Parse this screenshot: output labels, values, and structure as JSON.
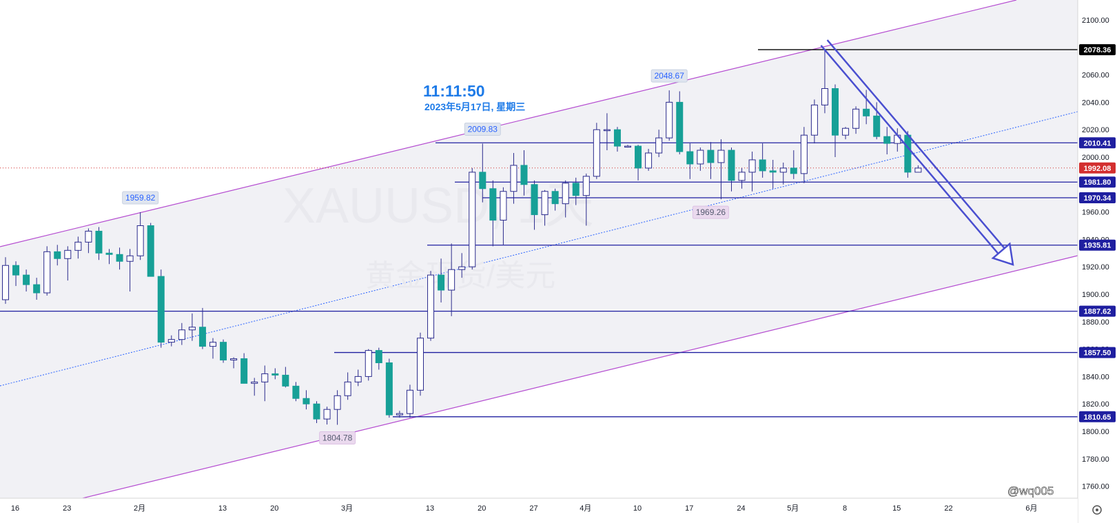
{
  "chart_data": {
    "type": "candlestick",
    "symbol_watermark": "XAUUSD, 1天",
    "description_watermark": "黄金现货/美元",
    "clock": {
      "time": "11:11:50",
      "date": "2023年5月17日, 星期三"
    },
    "credit": "@wq005",
    "y_axis": {
      "min": 1760,
      "max": 2100,
      "ticks": [
        "2100.00",
        "2080.00",
        "2060.00",
        "2040.00",
        "2020.00",
        "2000.00",
        "1980.00",
        "1960.00",
        "1940.00",
        "1920.00",
        "1900.00",
        "1880.00",
        "1860.00",
        "1840.00",
        "1820.00",
        "1800.00",
        "1780.00",
        "1760.00"
      ]
    },
    "x_axis": {
      "ticks": [
        {
          "label": "16",
          "index": 0
        },
        {
          "label": "23",
          "index": 5
        },
        {
          "label": "2月",
          "index": 12
        },
        {
          "label": "13",
          "index": 20
        },
        {
          "label": "20",
          "index": 25
        },
        {
          "label": "3月",
          "index": 32
        },
        {
          "label": "13",
          "index": 40
        },
        {
          "label": "20",
          "index": 45
        },
        {
          "label": "27",
          "index": 50
        },
        {
          "label": "4月",
          "index": 55
        },
        {
          "label": "10",
          "index": 60
        },
        {
          "label": "17",
          "index": 65
        },
        {
          "label": "24",
          "index": 70
        },
        {
          "label": "5月",
          "index": 75
        },
        {
          "label": "8",
          "index": 80
        },
        {
          "label": "15",
          "index": 85
        },
        {
          "label": "22",
          "index": 90
        },
        {
          "label": "6月",
          "index": 98
        }
      ]
    },
    "candles": [
      {
        "o": 1896,
        "h": 1927,
        "l": 1893,
        "c": 1921
      },
      {
        "o": 1921,
        "h": 1924,
        "l": 1906,
        "c": 1914
      },
      {
        "o": 1914,
        "h": 1918,
        "l": 1902,
        "c": 1907
      },
      {
        "o": 1907,
        "h": 1912,
        "l": 1896,
        "c": 1901
      },
      {
        "o": 1901,
        "h": 1935,
        "l": 1899,
        "c": 1931
      },
      {
        "o": 1931,
        "h": 1936,
        "l": 1921,
        "c": 1926
      },
      {
        "o": 1926,
        "h": 1935,
        "l": 1910,
        "c": 1932
      },
      {
        "o": 1932,
        "h": 1942,
        "l": 1926,
        "c": 1938
      },
      {
        "o": 1938,
        "h": 1948,
        "l": 1930,
        "c": 1946
      },
      {
        "o": 1946,
        "h": 1949,
        "l": 1925,
        "c": 1930
      },
      {
        "o": 1930,
        "h": 1933,
        "l": 1922,
        "c": 1929
      },
      {
        "o": 1929,
        "h": 1934,
        "l": 1918,
        "c": 1924
      },
      {
        "o": 1924,
        "h": 1933,
        "l": 1902,
        "c": 1928
      },
      {
        "o": 1928,
        "h": 1959.82,
        "l": 1925,
        "c": 1950
      },
      {
        "o": 1950,
        "h": 1952,
        "l": 1914,
        "c": 1913
      },
      {
        "o": 1913,
        "h": 1918,
        "l": 1861,
        "c": 1865
      },
      {
        "o": 1865,
        "h": 1870,
        "l": 1862,
        "c": 1867
      },
      {
        "o": 1867,
        "h": 1879,
        "l": 1863,
        "c": 1874
      },
      {
        "o": 1874,
        "h": 1886,
        "l": 1866,
        "c": 1876
      },
      {
        "o": 1876,
        "h": 1890,
        "l": 1860,
        "c": 1862
      },
      {
        "o": 1862,
        "h": 1868,
        "l": 1853,
        "c": 1865
      },
      {
        "o": 1865,
        "h": 1867,
        "l": 1850,
        "c": 1852
      },
      {
        "o": 1852,
        "h": 1854,
        "l": 1846,
        "c": 1853
      },
      {
        "o": 1853,
        "h": 1857,
        "l": 1835,
        "c": 1835
      },
      {
        "o": 1835,
        "h": 1839,
        "l": 1826,
        "c": 1836
      },
      {
        "o": 1836,
        "h": 1848,
        "l": 1822,
        "c": 1842
      },
      {
        "o": 1842,
        "h": 1846,
        "l": 1838,
        "c": 1841
      },
      {
        "o": 1841,
        "h": 1847,
        "l": 1832,
        "c": 1833
      },
      {
        "o": 1833,
        "h": 1836,
        "l": 1822,
        "c": 1824
      },
      {
        "o": 1824,
        "h": 1830,
        "l": 1816,
        "c": 1820
      },
      {
        "o": 1820,
        "h": 1822,
        "l": 1806,
        "c": 1809
      },
      {
        "o": 1809,
        "h": 1818,
        "l": 1805,
        "c": 1816
      },
      {
        "o": 1816,
        "h": 1830,
        "l": 1804.78,
        "c": 1826
      },
      {
        "o": 1826,
        "h": 1843,
        "l": 1823,
        "c": 1836
      },
      {
        "o": 1836,
        "h": 1845,
        "l": 1833,
        "c": 1840
      },
      {
        "o": 1840,
        "h": 1860,
        "l": 1837,
        "c": 1859
      },
      {
        "o": 1859,
        "h": 1861,
        "l": 1845,
        "c": 1850
      },
      {
        "o": 1850,
        "h": 1853,
        "l": 1810,
        "c": 1812
      },
      {
        "o": 1812,
        "h": 1815,
        "l": 1810,
        "c": 1813
      },
      {
        "o": 1813,
        "h": 1834,
        "l": 1810,
        "c": 1830
      },
      {
        "o": 1830,
        "h": 1872,
        "l": 1826,
        "c": 1868
      },
      {
        "o": 1868,
        "h": 1917,
        "l": 1866,
        "c": 1914
      },
      {
        "o": 1914,
        "h": 1926,
        "l": 1894,
        "c": 1903
      },
      {
        "o": 1903,
        "h": 1937,
        "l": 1884,
        "c": 1918
      },
      {
        "o": 1918,
        "h": 1930,
        "l": 1912,
        "c": 1920
      },
      {
        "o": 1920,
        "h": 1992,
        "l": 1918,
        "c": 1989
      },
      {
        "o": 1989,
        "h": 2009.83,
        "l": 1967,
        "c": 1977
      },
      {
        "o": 1977,
        "h": 1983,
        "l": 1935,
        "c": 1954
      },
      {
        "o": 1954,
        "h": 1978,
        "l": 1936,
        "c": 1975
      },
      {
        "o": 1975,
        "h": 2003,
        "l": 1966,
        "c": 1994
      },
      {
        "o": 1994,
        "h": 2005,
        "l": 1972,
        "c": 1980
      },
      {
        "o": 1980,
        "h": 1983,
        "l": 1947,
        "c": 1958
      },
      {
        "o": 1958,
        "h": 1976,
        "l": 1950,
        "c": 1975
      },
      {
        "o": 1975,
        "h": 1977,
        "l": 1961,
        "c": 1966
      },
      {
        "o": 1966,
        "h": 1983,
        "l": 1956,
        "c": 1981
      },
      {
        "o": 1981,
        "h": 1985,
        "l": 1965,
        "c": 1972
      },
      {
        "o": 1972,
        "h": 1988,
        "l": 1950,
        "c": 1986
      },
      {
        "o": 1986,
        "h": 2025,
        "l": 1984,
        "c": 2020
      },
      {
        "o": 2020,
        "h": 2032,
        "l": 2005,
        "c": 2020
      },
      {
        "o": 2020,
        "h": 2022,
        "l": 2004,
        "c": 2008
      },
      {
        "o": 2008,
        "h": 2009,
        "l": 2007,
        "c": 2008
      },
      {
        "o": 2008,
        "h": 2009,
        "l": 1983,
        "c": 1992
      },
      {
        "o": 1992,
        "h": 2006,
        "l": 1990,
        "c": 2003
      },
      {
        "o": 2003,
        "h": 2020,
        "l": 2000,
        "c": 2014
      },
      {
        "o": 2014,
        "h": 2048.67,
        "l": 2012,
        "c": 2040
      },
      {
        "o": 2040,
        "h": 2048,
        "l": 2002,
        "c": 2004
      },
      {
        "o": 2004,
        "h": 2010,
        "l": 1984,
        "c": 1995
      },
      {
        "o": 1995,
        "h": 2007,
        "l": 1990,
        "c": 2005
      },
      {
        "o": 2005,
        "h": 2011,
        "l": 1984,
        "c": 1996
      },
      {
        "o": 1996,
        "h": 2013,
        "l": 1969.26,
        "c": 2005
      },
      {
        "o": 2005,
        "h": 2007,
        "l": 1975,
        "c": 1983
      },
      {
        "o": 1983,
        "h": 1992,
        "l": 1977,
        "c": 1989
      },
      {
        "o": 1989,
        "h": 2004,
        "l": 1975,
        "c": 1998
      },
      {
        "o": 1998,
        "h": 2010,
        "l": 1985,
        "c": 1990
      },
      {
        "o": 1990,
        "h": 1998,
        "l": 1977,
        "c": 1989
      },
      {
        "o": 1989,
        "h": 1996,
        "l": 1980,
        "c": 1992
      },
      {
        "o": 1992,
        "h": 2005,
        "l": 1984,
        "c": 1988
      },
      {
        "o": 1988,
        "h": 2022,
        "l": 1981,
        "c": 2016
      },
      {
        "o": 2016,
        "h": 2042,
        "l": 2010,
        "c": 2038
      },
      {
        "o": 2038,
        "h": 2078.36,
        "l": 2032,
        "c": 2050
      },
      {
        "o": 2050,
        "h": 2053,
        "l": 2000,
        "c": 2016
      },
      {
        "o": 2016,
        "h": 2022,
        "l": 2013,
        "c": 2021
      },
      {
        "o": 2021,
        "h": 2037,
        "l": 2017,
        "c": 2035
      },
      {
        "o": 2035,
        "h": 2049,
        "l": 2024,
        "c": 2030
      },
      {
        "o": 2030,
        "h": 2040,
        "l": 2013,
        "c": 2015
      },
      {
        "o": 2015,
        "h": 2022,
        "l": 2002,
        "c": 2010
      },
      {
        "o": 2010,
        "h": 2021,
        "l": 2004,
        "c": 2016
      },
      {
        "o": 2016,
        "h": 2019,
        "l": 1985,
        "c": 1989
      },
      {
        "o": 1989,
        "h": 1994,
        "l": 1989,
        "c": 1992
      }
    ],
    "horizontal_levels": [
      {
        "price": 2078.36,
        "label": "2078.36",
        "color": "#000000",
        "x_start": 1100
      },
      {
        "price": 2010.41,
        "label": "2010.41",
        "color": "#1f1fa0",
        "x_start": 632
      },
      {
        "price": 1981.8,
        "label": "1981.80",
        "color": "#1f1fa0",
        "x_start": 660
      },
      {
        "price": 1970.34,
        "label": "1970.34",
        "color": "#1f1fa0",
        "x_start": 700
      },
      {
        "price": 1935.81,
        "label": "1935.81",
        "color": "#1f1fa0",
        "x_start": 620
      },
      {
        "price": 1887.62,
        "label": "1887.62",
        "color": "#1f1fa0",
        "x_start": 0
      },
      {
        "price": 1857.5,
        "label": "1857.50",
        "color": "#1f1fa0",
        "x_start": 485
      },
      {
        "price": 1810.65,
        "label": "1810.65",
        "color": "#1f1fa0",
        "x_start": 570
      }
    ],
    "current_price": {
      "price": 1992.08,
      "label": "1992.08",
      "color": "#d32f2f"
    },
    "callouts": [
      {
        "text": "1959.82",
        "index": 13,
        "price": 1959.82,
        "position": "above",
        "style": "blue"
      },
      {
        "text": "2009.83",
        "index": 46,
        "price": 2009.83,
        "position": "above",
        "style": "blue"
      },
      {
        "text": "2048.67",
        "index": 64,
        "price": 2048.67,
        "position": "above",
        "style": "blue"
      },
      {
        "text": "1804.78",
        "index": 32,
        "price": 1804.78,
        "position": "below",
        "style": "purple"
      },
      {
        "text": "1969.26",
        "index": 68,
        "price": 1969.26,
        "position": "below",
        "style": "purple"
      }
    ],
    "colors": {
      "up_body": "#ffffff",
      "up_border": "#2a2a8c",
      "down_body": "#17a097",
      "wick": "#2a2a8c",
      "channel_line": "#b44bd0",
      "channel_fill": "#ececf2",
      "mid_line": "#2962ff",
      "arrow": "#4a4fd0",
      "label_bg": "#1f1fa0"
    }
  }
}
